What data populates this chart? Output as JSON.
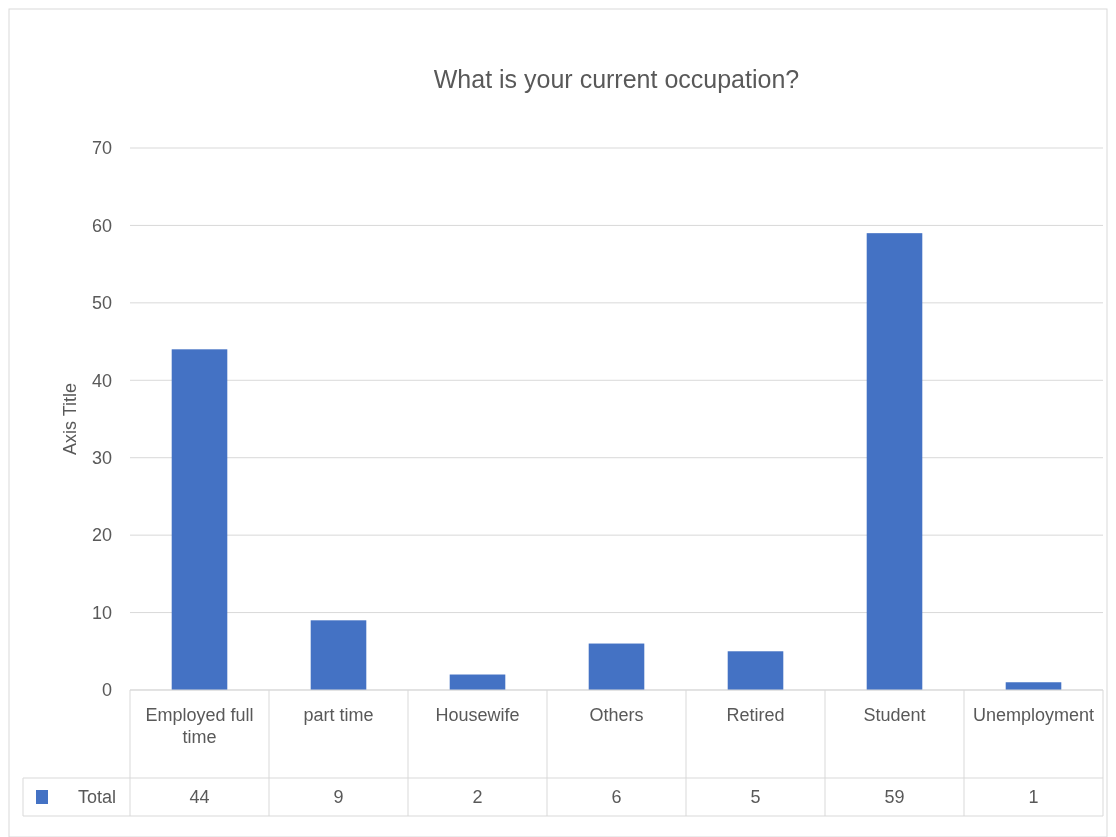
{
  "chart_data": {
    "type": "bar",
    "title": "What is your current occupation?",
    "ylabel": "Axis Title",
    "categories": [
      "Employed full time",
      "part time",
      "Housewife",
      "Others",
      "Retired",
      "Student",
      "Unemployment"
    ],
    "series": [
      {
        "name": "Total",
        "color": "#4472c4",
        "values": [
          44,
          9,
          2,
          6,
          5,
          59,
          1
        ]
      }
    ],
    "ylim": [
      0,
      70
    ],
    "yticks": [
      0,
      10,
      20,
      30,
      40,
      50,
      60,
      70
    ],
    "grid": "y",
    "data_labels": true,
    "legend": "bottom"
  }
}
